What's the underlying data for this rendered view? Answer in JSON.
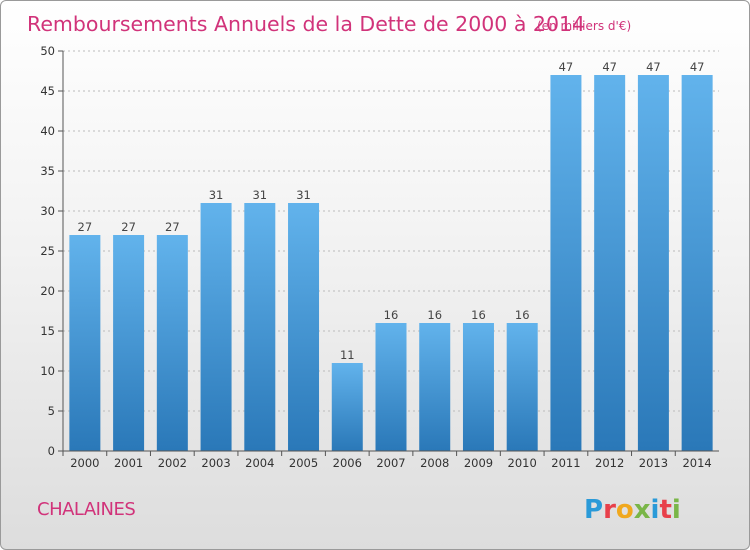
{
  "chart_data": {
    "type": "bar",
    "title": "Remboursements Annuels de la Dette de 2000 à 2014",
    "unit": "(en milliers d'€)",
    "categories": [
      "2000",
      "2001",
      "2002",
      "2003",
      "2004",
      "2005",
      "2006",
      "2007",
      "2008",
      "2009",
      "2010",
      "2011",
      "2012",
      "2013",
      "2014"
    ],
    "values": [
      27,
      27,
      27,
      31,
      31,
      31,
      11,
      16,
      16,
      16,
      16,
      47,
      47,
      47,
      47
    ],
    "xlabel": "",
    "ylabel": "",
    "ylim": [
      0,
      50
    ],
    "yticks": [
      0,
      5,
      10,
      15,
      20,
      25,
      30,
      35,
      40,
      45,
      50
    ],
    "grid": true,
    "legend": "none"
  },
  "footer": {
    "commune": "CHALAINES",
    "brand_letters": [
      "P",
      "r",
      "o",
      "x",
      "i",
      "t",
      "i"
    ],
    "brand_colors": [
      "#2a9ad8",
      "#e8404a",
      "#f0a81e",
      "#7ab648",
      "#2a9ad8",
      "#e8404a",
      "#7ab648"
    ]
  },
  "colors": {
    "accent": "#d1337a",
    "bar_top": "#62b3ec",
    "bar_bottom": "#2a78b8",
    "grid": "#bbbbbb"
  }
}
